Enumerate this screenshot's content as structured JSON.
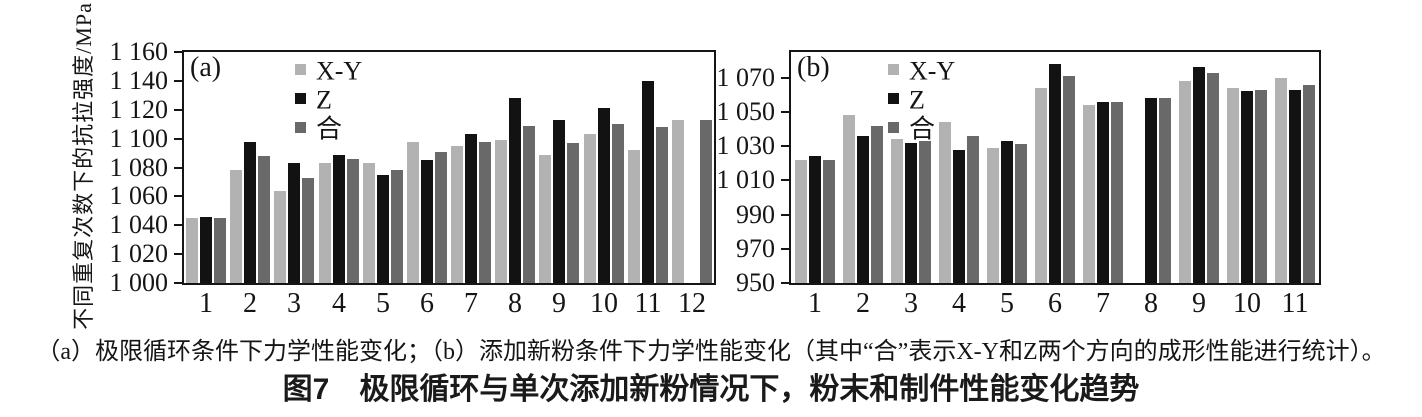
{
  "caption": {
    "line1": "（a）极限循环条件下力学性能变化；（b）添加新粉条件下力学性能变化（其中“合”表示X-Y和Z两个方向的成形性能进行统计）。",
    "line2": "图7　极限循环与单次添加新粉情况下，粉末和制件性能变化趋势"
  },
  "chart_data": [
    {
      "type": "bar",
      "panel_label": "(a)",
      "title": "",
      "xlabel": "",
      "ylabel": "不同重复次数下的抗拉强度/MPa",
      "ylim": [
        1000,
        1160
      ],
      "grid": false,
      "legend_position": "upper-left-inside",
      "yticks": [
        1000,
        1020,
        1040,
        1060,
        1080,
        1100,
        1120,
        1140,
        1160
      ],
      "ytick_labels": [
        "1 000",
        "1 020",
        "1 040",
        "1 060",
        "1 080",
        "1 100",
        "1 120",
        "1 140",
        "1 160"
      ],
      "categories": [
        "1",
        "2",
        "3",
        "4",
        "5",
        "6",
        "7",
        "8",
        "9",
        "10",
        "11",
        "12"
      ],
      "series": [
        {
          "name": "X-Y",
          "color": "#b2b2b2",
          "values": [
            1045,
            1078,
            1064,
            1083,
            1083,
            1098,
            1095,
            1099,
            1089,
            1103,
            1092,
            1113
          ]
        },
        {
          "name": "Z",
          "color": "#121212",
          "values": [
            1046,
            1098,
            1083,
            1089,
            1075,
            1085,
            1103,
            1128,
            1113,
            1121,
            1140,
            null
          ]
        },
        {
          "name": "合",
          "color": "#696969",
          "values": [
            1045,
            1088,
            1073,
            1086,
            1078,
            1091,
            1098,
            1109,
            1097,
            1110,
            1108,
            1113
          ]
        }
      ]
    },
    {
      "type": "bar",
      "panel_label": "(b)",
      "title": "",
      "xlabel": "",
      "ylabel": "",
      "ylim": [
        950,
        1085
      ],
      "grid": false,
      "legend_position": "upper-left-inside",
      "yticks": [
        950,
        970,
        990,
        1010,
        1030,
        1050,
        1070
      ],
      "ytick_labels": [
        "950",
        "970",
        "990",
        "1 010",
        "1 030",
        "1 050",
        "1 070"
      ],
      "categories": [
        "1",
        "2",
        "3",
        "4",
        "5",
        "6",
        "7",
        "8",
        "9",
        "10",
        "11"
      ],
      "series": [
        {
          "name": "X-Y",
          "color": "#b2b2b2",
          "values": [
            1022,
            1048,
            1034,
            1044,
            1029,
            1064,
            1054,
            null,
            1068,
            1064,
            1070
          ]
        },
        {
          "name": "Z",
          "color": "#121212",
          "values": [
            1024,
            1036,
            1032,
            1028,
            1033,
            1078,
            1056,
            1058,
            1076,
            1062,
            1063
          ]
        },
        {
          "name": "合",
          "color": "#696969",
          "values": [
            1022,
            1042,
            1033,
            1036,
            1031,
            1071,
            1056,
            1058,
            1073,
            1063,
            1066
          ]
        }
      ]
    }
  ]
}
